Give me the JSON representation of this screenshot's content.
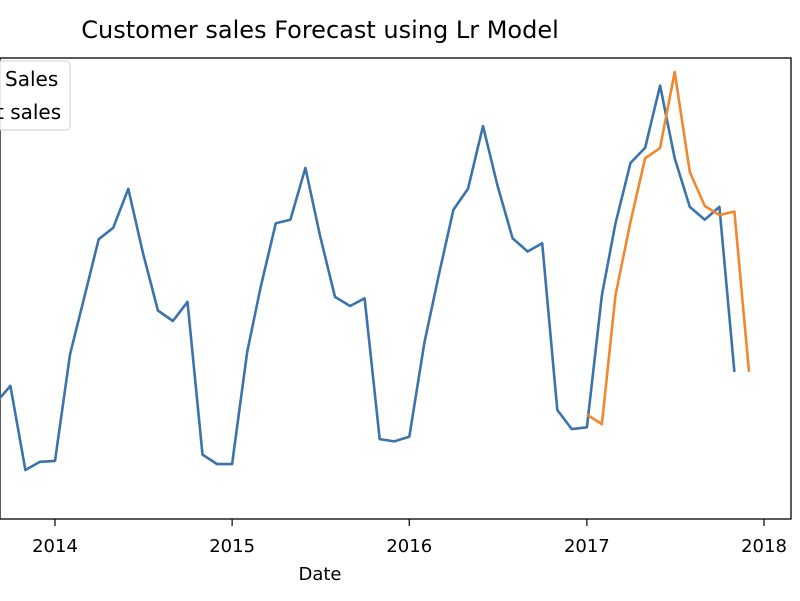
{
  "chart_data": {
    "type": "line",
    "title": "Customer sales Forecast using Lr Model",
    "xlabel": "Date",
    "ylabel": "",
    "x_ticks": [
      "2014",
      "2015",
      "2016",
      "2017",
      "2018"
    ],
    "xlim": [
      "2013-08-01",
      "2018-03-01"
    ],
    "ylim": [
      0,
      100
    ],
    "grid": false,
    "legend": {
      "placement": "top-left",
      "entries": [
        "Sales",
        "t sales"
      ]
    },
    "series": [
      {
        "name": "Sales",
        "color": "#3a74ab",
        "points": [
          [
            "2013-08-01",
            38.2
          ],
          [
            "2013-09-01",
            35.2
          ],
          [
            "2013-10-01",
            38.9
          ],
          [
            "2013-11-01",
            20.4
          ],
          [
            "2013-12-01",
            22.2
          ],
          [
            "2014-01-01",
            22.4
          ],
          [
            "2014-02-01",
            45.8
          ],
          [
            "2014-03-01",
            57.8
          ],
          [
            "2014-04-01",
            71.2
          ],
          [
            "2014-05-01",
            73.7
          ],
          [
            "2014-06-01",
            82.3
          ],
          [
            "2014-07-01",
            68.3
          ],
          [
            "2014-08-01",
            55.5
          ],
          [
            "2014-09-01",
            53.2
          ],
          [
            "2014-10-01",
            57.4
          ],
          [
            "2014-11-01",
            23.8
          ],
          [
            "2014-12-01",
            21.7
          ],
          [
            "2015-01-01",
            21.7
          ],
          [
            "2015-02-01",
            46.4
          ],
          [
            "2015-03-01",
            60.8
          ],
          [
            "2015-04-01",
            74.7
          ],
          [
            "2015-05-01",
            75.5
          ],
          [
            "2015-06-01",
            86.9
          ],
          [
            "2015-07-01",
            72.0
          ],
          [
            "2015-08-01",
            58.5
          ],
          [
            "2015-09-01",
            56.5
          ],
          [
            "2015-10-01",
            58.2
          ],
          [
            "2015-11-01",
            27.2
          ],
          [
            "2015-12-01",
            26.7
          ],
          [
            "2016-01-01",
            27.7
          ],
          [
            "2016-02-01",
            48.3
          ],
          [
            "2016-03-01",
            62.9
          ],
          [
            "2016-04-01",
            77.7
          ],
          [
            "2016-05-01",
            82.3
          ],
          [
            "2016-06-01",
            96.1
          ],
          [
            "2016-07-01",
            82.9
          ],
          [
            "2016-08-01",
            71.4
          ],
          [
            "2016-09-01",
            68.5
          ],
          [
            "2016-10-01",
            70.3
          ],
          [
            "2016-11-01",
            33.6
          ],
          [
            "2016-12-01",
            29.4
          ],
          [
            "2017-01-01",
            29.8
          ],
          [
            "2017-02-01",
            58.9
          ],
          [
            "2017-03-01",
            74.7
          ],
          [
            "2017-04-01",
            88.0
          ],
          [
            "2017-05-01",
            91.3
          ],
          [
            "2017-06-01",
            105.0
          ],
          [
            "2017-07-01",
            89.0
          ],
          [
            "2017-08-01",
            78.3
          ],
          [
            "2017-09-01",
            75.5
          ],
          [
            "2017-10-01",
            78.3
          ],
          [
            "2017-11-01",
            42.0
          ]
        ]
      },
      {
        "name": "t sales",
        "color": "#f0882f",
        "points": [
          [
            "2017-01-01",
            32.6
          ],
          [
            "2017-02-01",
            30.5
          ],
          [
            "2017-03-01",
            58.9
          ],
          [
            "2017-04-01",
            75.0
          ],
          [
            "2017-05-01",
            89.0
          ],
          [
            "2017-06-01",
            91.3
          ],
          [
            "2017-07-01",
            108.0
          ],
          [
            "2017-08-01",
            86.0
          ],
          [
            "2017-09-01",
            78.5
          ],
          [
            "2017-10-01",
            76.5
          ],
          [
            "2017-11-01",
            77.3
          ],
          [
            "2017-12-01",
            42.0
          ]
        ]
      }
    ]
  }
}
